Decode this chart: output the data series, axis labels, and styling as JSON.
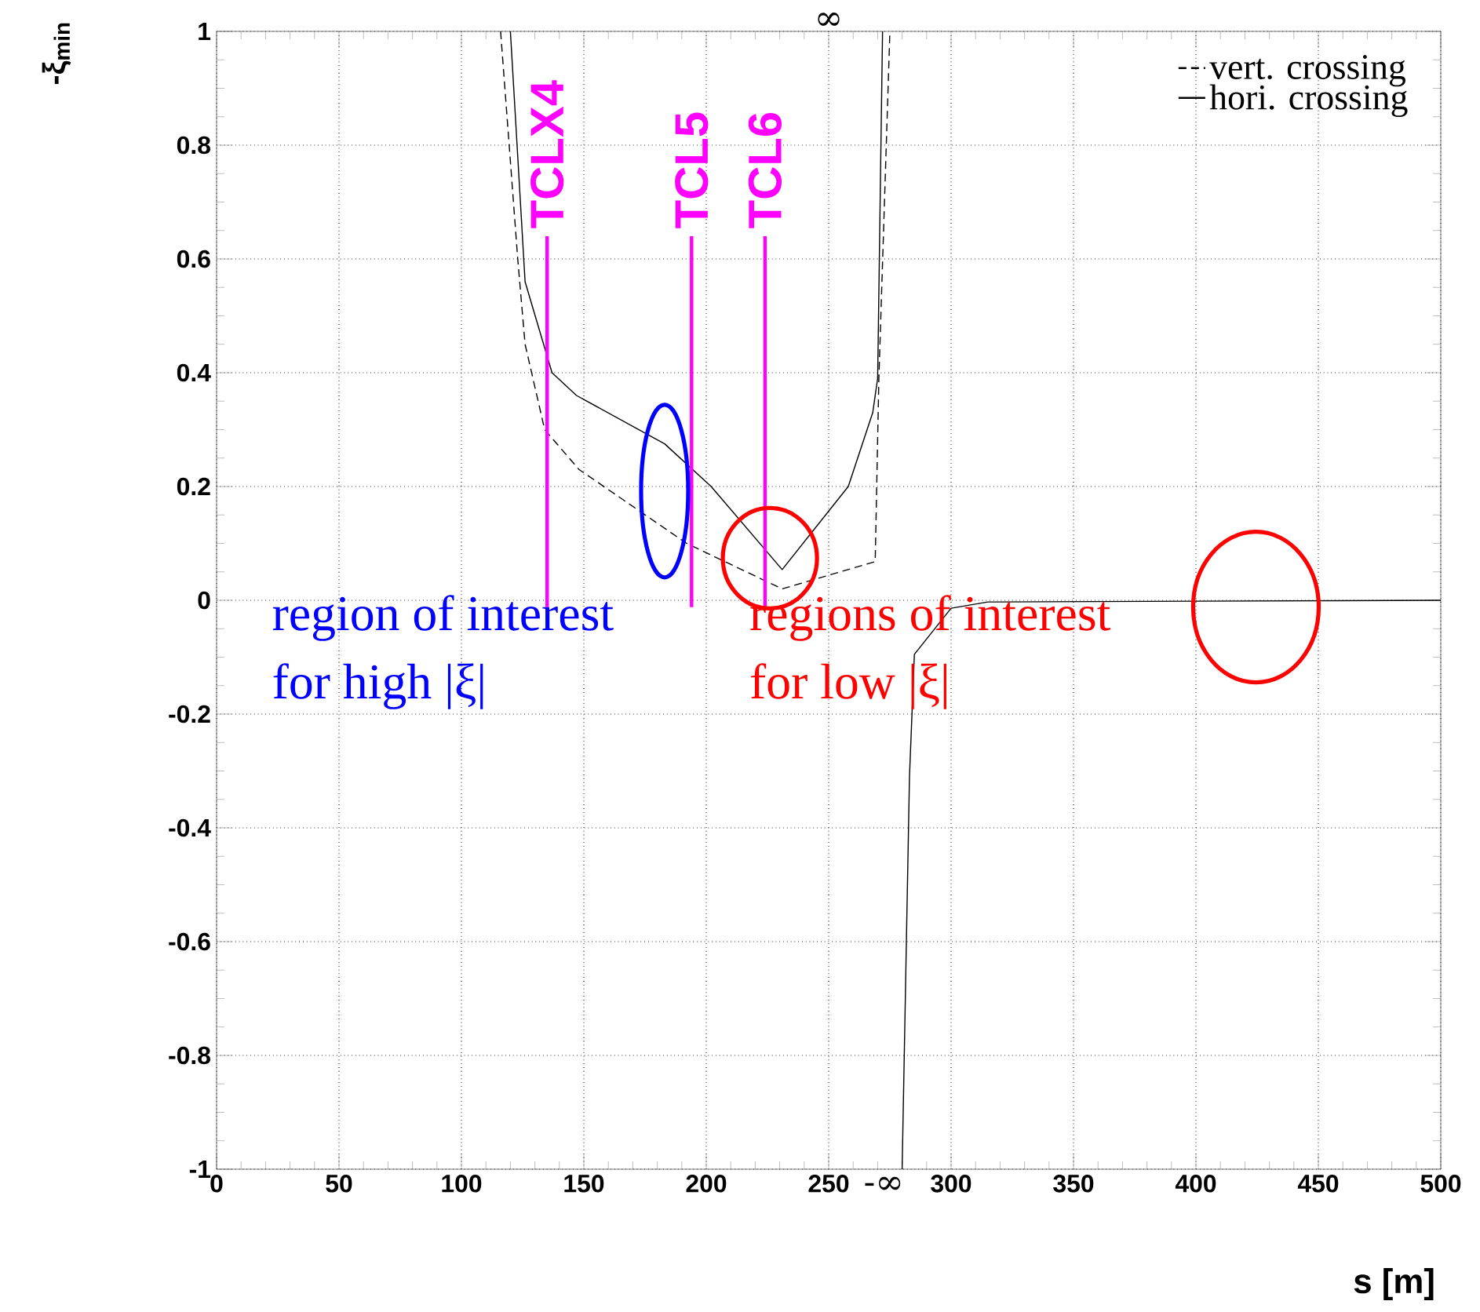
{
  "chart_data": {
    "type": "line",
    "xlabel": "s [m]",
    "ylabel": "-ξ$_{min}$",
    "xlim": [
      0,
      500
    ],
    "ylim": [
      -1,
      1
    ],
    "xticks": [
      0,
      50,
      100,
      150,
      200,
      250,
      300,
      350,
      400,
      450,
      500
    ],
    "yticks": [
      -1,
      -0.8,
      -0.6,
      -0.4,
      -0.2,
      0,
      0.2,
      0.4,
      0.6,
      0.8,
      1
    ],
    "grid": true,
    "legend": "top right",
    "series": [
      {
        "name": "vert. crossing",
        "color": "#000000",
        "line_style": "dashed",
        "x": [
          116,
          123,
          126,
          134,
          148,
          192,
          231,
          269,
          270.5,
          275
        ],
        "values": [
          1,
          0.6,
          0.45,
          0.3,
          0.23,
          0.1,
          0.02,
          0.068,
          0.39,
          1
        ]
      },
      {
        "name": "hori. crossing",
        "color": "#000000",
        "line_style": "solid",
        "x": [
          120,
          126,
          137,
          147,
          183,
          202,
          231,
          258,
          268,
          270,
          272,
          276,
          280,
          283,
          285,
          300,
          315,
          500
        ],
        "values": [
          1,
          0.56,
          0.4,
          0.36,
          0.275,
          0.2,
          0.054,
          0.2,
          0.33,
          0.39,
          1,
          null,
          -1,
          -0.31,
          -0.095,
          -0.014,
          -0.003,
          0
        ]
      }
    ],
    "ref_lines": [
      {
        "axis": "x",
        "value": 135,
        "label": "TCLX4",
        "color": "#ff00ff"
      },
      {
        "axis": "x",
        "value": 194,
        "label": "TCL5",
        "color": "#ff00ff"
      },
      {
        "axis": "x",
        "value": 224,
        "label": "TCL6",
        "color": "#ff00ff"
      }
    ],
    "annotations": [
      "region of interest",
      "for high |ξ|",
      "regions of interest",
      "for low |ξ|",
      "∞",
      "-∞"
    ]
  }
}
